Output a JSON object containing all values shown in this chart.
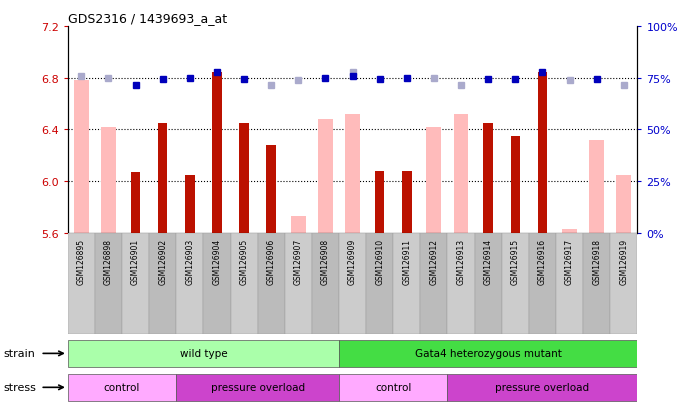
{
  "title": "GDS2316 / 1439693_a_at",
  "samples": [
    "GSM126895",
    "GSM126898",
    "GSM126901",
    "GSM126902",
    "GSM126903",
    "GSM126904",
    "GSM126905",
    "GSM126906",
    "GSM126907",
    "GSM126908",
    "GSM126909",
    "GSM126910",
    "GSM126911",
    "GSM126912",
    "GSM126913",
    "GSM126914",
    "GSM126915",
    "GSM126916",
    "GSM126917",
    "GSM126918",
    "GSM126919"
  ],
  "red_bars": [
    null,
    null,
    6.07,
    6.45,
    6.05,
    6.84,
    6.45,
    6.28,
    null,
    null,
    null,
    6.08,
    6.08,
    null,
    null,
    6.45,
    6.35,
    6.84,
    null,
    null,
    null
  ],
  "pink_bars": [
    6.78,
    6.42,
    null,
    null,
    null,
    null,
    null,
    null,
    5.73,
    6.48,
    6.52,
    null,
    null,
    6.42,
    6.52,
    null,
    null,
    null,
    5.63,
    6.32,
    6.05
  ],
  "blue_squares": [
    null,
    null,
    6.74,
    6.79,
    6.8,
    6.84,
    6.79,
    null,
    null,
    6.8,
    6.81,
    6.79,
    6.8,
    null,
    null,
    6.79,
    6.79,
    6.84,
    null,
    6.79,
    null
  ],
  "lightblue_squares": [
    6.81,
    6.8,
    null,
    null,
    null,
    null,
    null,
    6.74,
    6.78,
    null,
    6.84,
    null,
    null,
    6.8,
    6.74,
    null,
    null,
    null,
    6.78,
    null,
    6.74
  ],
  "ylim": [
    5.6,
    7.2
  ],
  "yticks_left": [
    5.6,
    6.0,
    6.4,
    6.8,
    7.2
  ],
  "yticks_right_pct": [
    0,
    25,
    50,
    75,
    100
  ],
  "bar_color_red": "#bb1100",
  "bar_color_pink": "#ffbbbb",
  "square_color_blue": "#0000bb",
  "square_color_lightblue": "#aaaacc",
  "ylabel_left_color": "#cc0000",
  "ylabel_right_color": "#0000cc",
  "strain_wild_color": "#aaffaa",
  "strain_gata4_color": "#44dd44",
  "stress_control_color": "#ffaaff",
  "stress_pressure_color": "#cc44cc",
  "bg_color": "#ffffff",
  "xtick_bg_color": "#cccccc",
  "strain_ranges": [
    {
      "label": "wild type",
      "start": 0,
      "end": 9
    },
    {
      "label": "Gata4 heterozygous mutant",
      "start": 10,
      "end": 20
    }
  ],
  "stress_ranges": [
    {
      "label": "control",
      "start": 0,
      "end": 3,
      "type": "control"
    },
    {
      "label": "pressure overload",
      "start": 4,
      "end": 9,
      "type": "pressure"
    },
    {
      "label": "control",
      "start": 10,
      "end": 13,
      "type": "control"
    },
    {
      "label": "pressure overload",
      "start": 14,
      "end": 20,
      "type": "pressure"
    }
  ]
}
